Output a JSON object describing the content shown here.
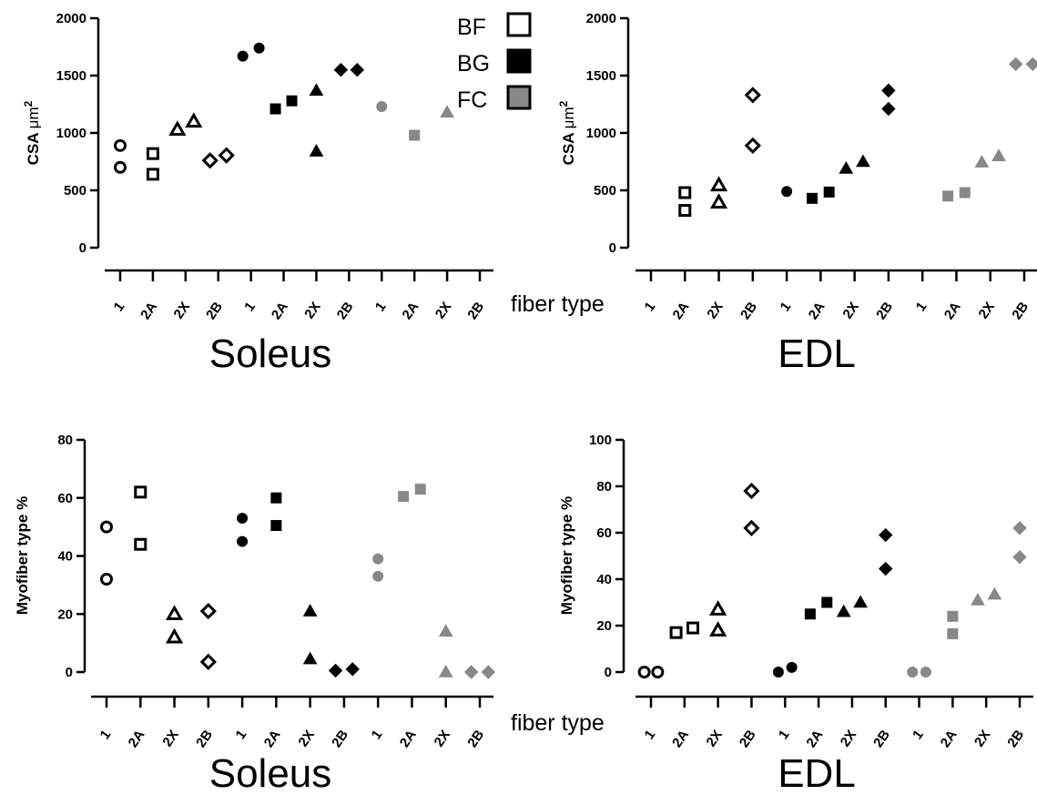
{
  "legend": {
    "entries": [
      {
        "label": "BF",
        "fill": "#ffffff",
        "stroke": "#000000"
      },
      {
        "label": "BG",
        "fill": "#000000",
        "stroke": "#000000"
      },
      {
        "label": "FC",
        "fill": "#888888",
        "stroke": "#000000"
      }
    ]
  },
  "fiber_type_label": "fiber type",
  "groups": [
    "BF",
    "BG",
    "FC"
  ],
  "group_colors": {
    "BF": "#ffffff",
    "BG": "#000000",
    "FC": "#888888"
  },
  "shapes": {
    "1": "circle",
    "2A": "square",
    "2X": "triangle",
    "2B": "diamond"
  },
  "chart_data": [
    {
      "type": "scatter",
      "panel": "top-left",
      "muscle": "Soleus",
      "ylabel": "CSA μm2",
      "ylim": [
        0,
        2000
      ],
      "yticks": [
        0,
        500,
        1000,
        1500,
        2000
      ],
      "categories": [
        "1",
        "2A",
        "2X",
        "2B",
        "1",
        "2A",
        "2X",
        "2B",
        "1",
        "2A",
        "2X",
        "2B"
      ],
      "series": [
        {
          "name": "BF",
          "points": [
            {
              "cat": 0,
              "y": 890,
              "dx": 0
            },
            {
              "cat": 0,
              "y": 700,
              "dx": 0
            },
            {
              "cat": 1,
              "y": 820,
              "dx": 0
            },
            {
              "cat": 1,
              "y": 640,
              "dx": 0
            },
            {
              "cat": 2,
              "y": 1030,
              "dx": -0.25
            },
            {
              "cat": 2,
              "y": 1100,
              "dx": 0.25
            },
            {
              "cat": 3,
              "y": 760,
              "dx": -0.25
            },
            {
              "cat": 3,
              "y": 805,
              "dx": 0.25
            }
          ]
        },
        {
          "name": "BG",
          "points": [
            {
              "cat": 4,
              "y": 1670,
              "dx": -0.25
            },
            {
              "cat": 4,
              "y": 1740,
              "dx": 0.25
            },
            {
              "cat": 5,
              "y": 1210,
              "dx": -0.25
            },
            {
              "cat": 5,
              "y": 1280,
              "dx": 0.25
            },
            {
              "cat": 6,
              "y": 1370,
              "dx": 0
            },
            {
              "cat": 6,
              "y": 840,
              "dx": 0
            },
            {
              "cat": 7,
              "y": 1550,
              "dx": -0.25
            },
            {
              "cat": 7,
              "y": 1550,
              "dx": 0.25
            }
          ]
        },
        {
          "name": "FC",
          "points": [
            {
              "cat": 8,
              "y": 1230,
              "dx": 0
            },
            {
              "cat": 9,
              "y": 980,
              "dx": 0
            },
            {
              "cat": 10,
              "y": 1180,
              "dx": 0
            }
          ]
        }
      ]
    },
    {
      "type": "scatter",
      "panel": "top-right",
      "muscle": "EDL",
      "ylabel": "CSA μm2",
      "ylim": [
        0,
        2000
      ],
      "yticks": [
        0,
        500,
        1000,
        1500,
        2000
      ],
      "categories": [
        "1",
        "2A",
        "2X",
        "2B",
        "1",
        "2A",
        "2X",
        "2B",
        "1",
        "2A",
        "2X",
        "2B"
      ],
      "series": [
        {
          "name": "BF",
          "points": [
            {
              "cat": 1,
              "y": 480,
              "dx": 0
            },
            {
              "cat": 1,
              "y": 325,
              "dx": 0
            },
            {
              "cat": 2,
              "y": 545,
              "dx": 0
            },
            {
              "cat": 2,
              "y": 395,
              "dx": 0
            },
            {
              "cat": 3,
              "y": 1330,
              "dx": 0
            },
            {
              "cat": 3,
              "y": 890,
              "dx": 0
            }
          ]
        },
        {
          "name": "BG",
          "points": [
            {
              "cat": 4,
              "y": 490,
              "dx": 0
            },
            {
              "cat": 5,
              "y": 430,
              "dx": -0.25
            },
            {
              "cat": 5,
              "y": 485,
              "dx": 0.25
            },
            {
              "cat": 6,
              "y": 690,
              "dx": -0.25
            },
            {
              "cat": 6,
              "y": 750,
              "dx": 0.25
            },
            {
              "cat": 7,
              "y": 1370,
              "dx": 0
            },
            {
              "cat": 7,
              "y": 1210,
              "dx": 0
            }
          ]
        },
        {
          "name": "FC",
          "points": [
            {
              "cat": 9,
              "y": 450,
              "dx": -0.25
            },
            {
              "cat": 9,
              "y": 480,
              "dx": 0.25
            },
            {
              "cat": 10,
              "y": 745,
              "dx": -0.25
            },
            {
              "cat": 10,
              "y": 800,
              "dx": 0.25
            },
            {
              "cat": 11,
              "y": 1600,
              "dx": -0.25
            },
            {
              "cat": 11,
              "y": 1600,
              "dx": 0.25
            }
          ]
        }
      ]
    },
    {
      "type": "scatter",
      "panel": "bottom-left",
      "muscle": "Soleus",
      "ylabel": "Myofiber type %",
      "ylim": [
        0,
        80
      ],
      "yticks": [
        0,
        20,
        40,
        60,
        80
      ],
      "categories": [
        "1",
        "2A",
        "2X",
        "2B",
        "1",
        "2A",
        "2X",
        "2B",
        "1",
        "2A",
        "2X",
        "2B"
      ],
      "series": [
        {
          "name": "BF",
          "points": [
            {
              "cat": 0,
              "y": 50,
              "dx": 0
            },
            {
              "cat": 0,
              "y": 32,
              "dx": 0
            },
            {
              "cat": 1,
              "y": 62,
              "dx": 0
            },
            {
              "cat": 1,
              "y": 44,
              "dx": 0
            },
            {
              "cat": 2,
              "y": 20,
              "dx": 0
            },
            {
              "cat": 2,
              "y": 12,
              "dx": 0
            },
            {
              "cat": 3,
              "y": 21,
              "dx": 0
            },
            {
              "cat": 3,
              "y": 3.5,
              "dx": 0
            }
          ]
        },
        {
          "name": "BG",
          "points": [
            {
              "cat": 4,
              "y": 53,
              "dx": 0
            },
            {
              "cat": 4,
              "y": 45,
              "dx": 0
            },
            {
              "cat": 5,
              "y": 60,
              "dx": 0
            },
            {
              "cat": 5,
              "y": 50.5,
              "dx": 0
            },
            {
              "cat": 6,
              "y": 21,
              "dx": 0
            },
            {
              "cat": 6,
              "y": 4.5,
              "dx": 0
            },
            {
              "cat": 7,
              "y": 0.5,
              "dx": -0.25
            },
            {
              "cat": 7,
              "y": 1,
              "dx": 0.25
            }
          ]
        },
        {
          "name": "FC",
          "points": [
            {
              "cat": 8,
              "y": 39,
              "dx": 0
            },
            {
              "cat": 8,
              "y": 33,
              "dx": 0
            },
            {
              "cat": 9,
              "y": 60.5,
              "dx": -0.25
            },
            {
              "cat": 9,
              "y": 63,
              "dx": 0.25
            },
            {
              "cat": 10,
              "y": 14,
              "dx": 0
            },
            {
              "cat": 10,
              "y": 0,
              "dx": 0
            },
            {
              "cat": 11,
              "y": 0,
              "dx": -0.25
            },
            {
              "cat": 11,
              "y": 0,
              "dx": 0.25
            }
          ]
        }
      ]
    },
    {
      "type": "scatter",
      "panel": "bottom-right",
      "muscle": "EDL",
      "ylabel": "Myofiber type %",
      "ylim": [
        0,
        100
      ],
      "yticks": [
        0,
        20,
        40,
        60,
        80,
        100
      ],
      "categories": [
        "1",
        "2A",
        "2X",
        "2B",
        "1",
        "2A",
        "2X",
        "2B",
        "1",
        "2A",
        "2X",
        "2B"
      ],
      "series": [
        {
          "name": "BF",
          "points": [
            {
              "cat": 0,
              "y": 0,
              "dx": -0.2
            },
            {
              "cat": 0,
              "y": 0,
              "dx": 0.2
            },
            {
              "cat": 1,
              "y": 17,
              "dx": -0.25
            },
            {
              "cat": 1,
              "y": 19,
              "dx": 0.25
            },
            {
              "cat": 2,
              "y": 27,
              "dx": 0
            },
            {
              "cat": 2,
              "y": 18,
              "dx": 0
            },
            {
              "cat": 3,
              "y": 78,
              "dx": 0
            },
            {
              "cat": 3,
              "y": 62,
              "dx": 0
            }
          ]
        },
        {
          "name": "BG",
          "points": [
            {
              "cat": 4,
              "y": 0,
              "dx": -0.2
            },
            {
              "cat": 4,
              "y": 2,
              "dx": 0.2
            },
            {
              "cat": 5,
              "y": 25,
              "dx": -0.25
            },
            {
              "cat": 5,
              "y": 30,
              "dx": 0.25
            },
            {
              "cat": 6,
              "y": 26,
              "dx": -0.25
            },
            {
              "cat": 6,
              "y": 30,
              "dx": 0.25
            },
            {
              "cat": 7,
              "y": 59,
              "dx": 0
            },
            {
              "cat": 7,
              "y": 44.5,
              "dx": 0
            }
          ]
        },
        {
          "name": "FC",
          "points": [
            {
              "cat": 8,
              "y": 0,
              "dx": -0.2
            },
            {
              "cat": 8,
              "y": 0,
              "dx": 0.2
            },
            {
              "cat": 9,
              "y": 24,
              "dx": 0
            },
            {
              "cat": 9,
              "y": 16.5,
              "dx": 0
            },
            {
              "cat": 10,
              "y": 31,
              "dx": -0.25
            },
            {
              "cat": 10,
              "y": 33.5,
              "dx": 0.25
            },
            {
              "cat": 11,
              "y": 62,
              "dx": 0
            },
            {
              "cat": 11,
              "y": 49.5,
              "dx": 0
            }
          ]
        }
      ]
    }
  ]
}
